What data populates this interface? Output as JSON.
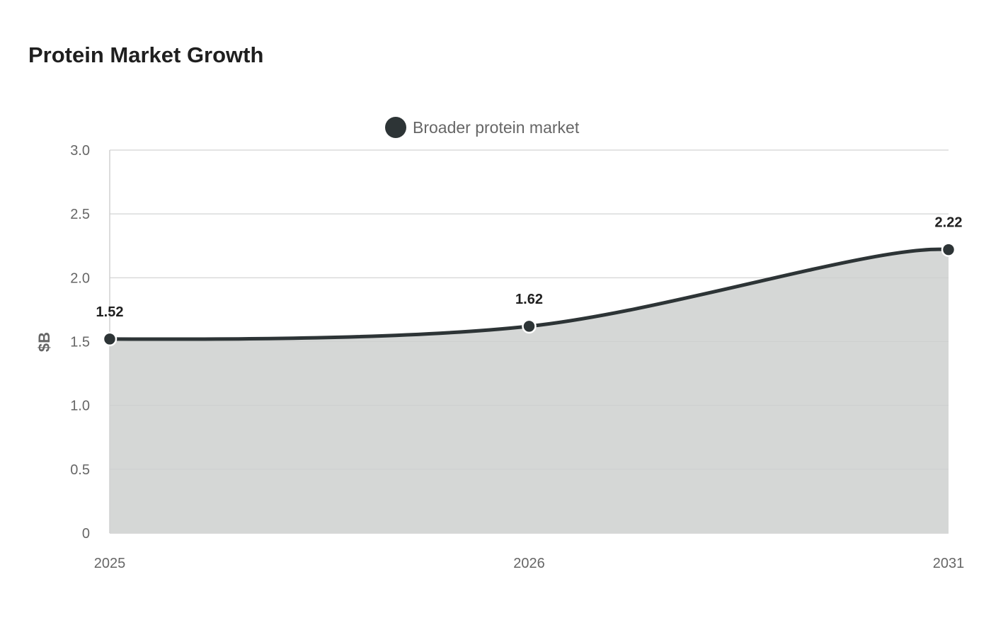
{
  "chart_data": {
    "type": "area",
    "title": "Protein Market Growth",
    "xlabel": "",
    "ylabel": "$B",
    "categories": [
      "2025",
      "2026",
      "2031"
    ],
    "series": [
      {
        "name": "Broader protein market",
        "values": [
          1.52,
          1.62,
          2.22
        ],
        "data_labels": [
          "1.52",
          "1.62",
          "2.22"
        ],
        "color": "#2d3436",
        "fill_color": "#d5d7d6"
      }
    ],
    "ylim": [
      0,
      3.0
    ],
    "yticks": [
      0,
      0.5,
      1.0,
      1.5,
      2.0,
      2.5,
      3.0
    ],
    "ytick_labels": [
      "0",
      "0.5",
      "1.0",
      "1.5",
      "2.0",
      "2.5",
      "3.0"
    ],
    "grid": true,
    "legend_position": "top-center",
    "colors": {
      "grid": "#e6e6e6",
      "axis": "#d0d0d0",
      "text": "#666666"
    }
  }
}
